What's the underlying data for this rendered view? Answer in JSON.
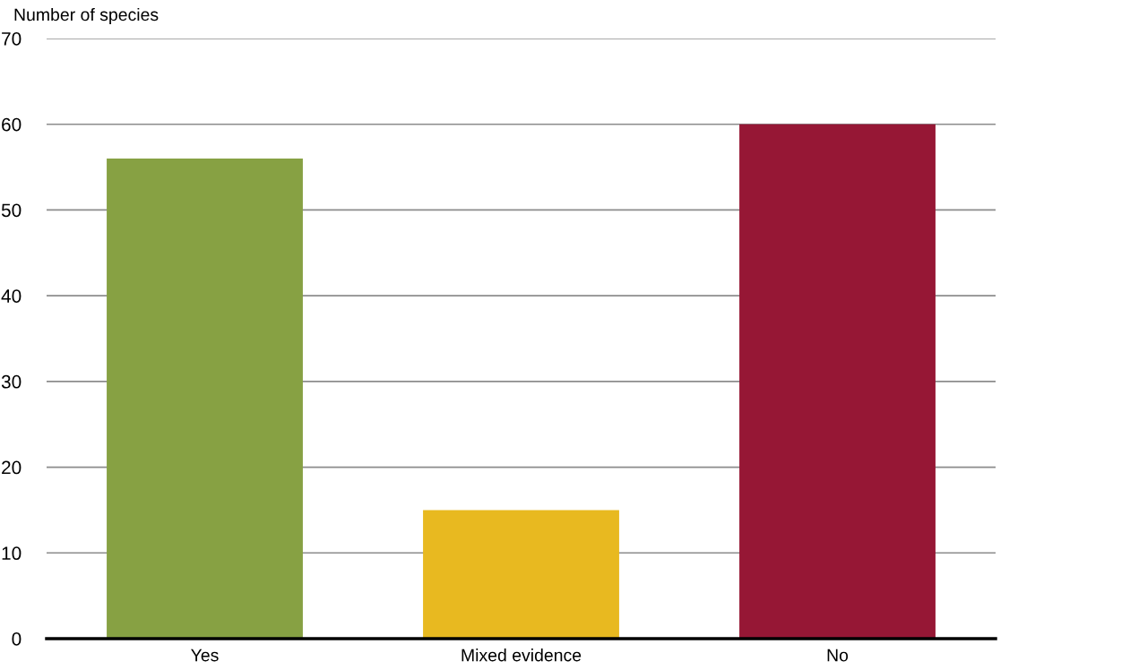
{
  "chart_data": {
    "type": "bar",
    "ylabel": "Number of species",
    "categories": [
      "Yes",
      "Mixed evidence",
      "No"
    ],
    "values": [
      56,
      15,
      60
    ],
    "colors": [
      "#87a143",
      "#e8b920",
      "#961735"
    ],
    "ylim": [
      0,
      70
    ],
    "yticks": [
      0,
      10,
      20,
      30,
      40,
      50,
      60,
      70
    ],
    "grid": "y"
  }
}
